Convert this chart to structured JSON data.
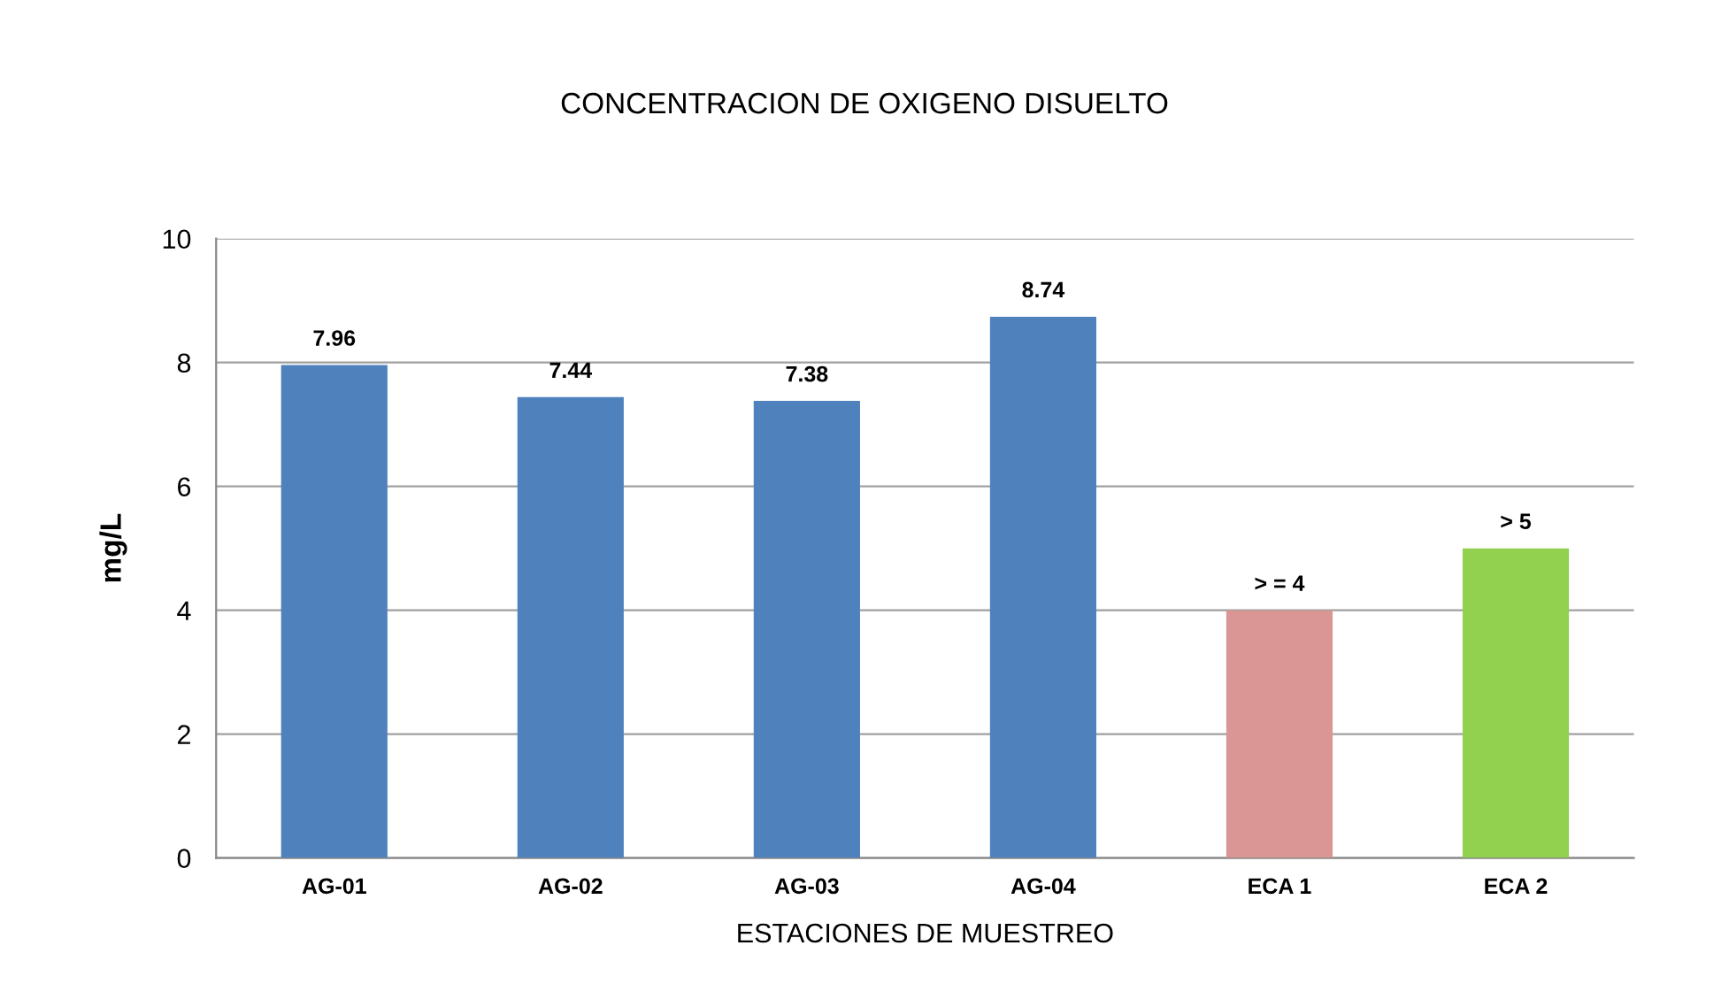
{
  "chart_data": {
    "type": "bar",
    "title": "CONCENTRACION DE OXIGENO DISUELTO",
    "xlabel": "ESTACIONES DE MUESTREO",
    "ylabel": "mg/L",
    "categories": [
      "AG-01",
      "AG-02",
      "AG-03",
      "AG-04",
      "ECA 1",
      "ECA 2"
    ],
    "values": [
      7.96,
      7.44,
      7.38,
      8.74,
      4,
      5
    ],
    "colors": [
      "#4f81bd",
      "#4f81bd",
      "#4f81bd",
      "#4f81bd",
      "#d99694",
      "#92d050"
    ],
    "value_labels": [
      "7.96",
      "7.44",
      "7.38",
      "8.74",
      "> = 4",
      "> 5"
    ],
    "ylim": [
      0,
      10
    ],
    "yticks": [
      0,
      2,
      4,
      6,
      8,
      10
    ],
    "grid": "y",
    "legend": false
  }
}
